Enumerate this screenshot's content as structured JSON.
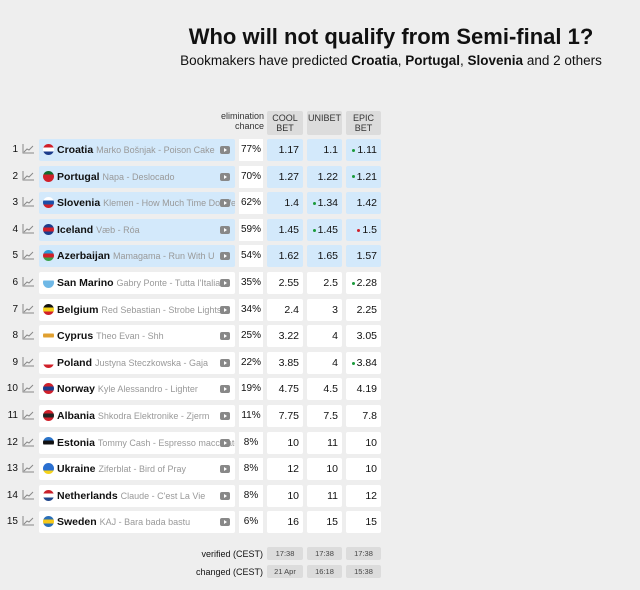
{
  "title": "Who will not qualify from Semi-final 1?",
  "subtitle": {
    "prefix": "Bookmakers have predicted ",
    "c1": "Croatia",
    "sep1": ", ",
    "c2": "Portugal",
    "sep2": ", ",
    "c3": "Slovenia",
    "suffix": " and 2 others"
  },
  "headers": {
    "chance": "elimination chance",
    "coolbet": "COOL BET",
    "unibet": "UNIBET",
    "epicbet": "EPIC BET"
  },
  "colors": {
    "highlight": "#d3e9fb",
    "green_dot": "#1a9a3a",
    "red_dot": "#d0202a"
  },
  "rows": [
    {
      "n": "1",
      "country": "Croatia",
      "song": "Marko Bošnjak - Poison Cake",
      "chance": "77%",
      "odds": [
        "1.17",
        "1.1",
        "1.11"
      ],
      "dots": [
        "",
        "",
        "green"
      ],
      "flag": [
        "#d0202a",
        "#fff",
        "#1b3c8c"
      ],
      "hl": true
    },
    {
      "n": "2",
      "country": "Portugal",
      "song": "Napa - Deslocado",
      "chance": "70%",
      "odds": [
        "1.27",
        "1.22",
        "1.21"
      ],
      "dots": [
        "",
        "",
        "green"
      ],
      "flag": [
        "#116b2d",
        "#d0202a",
        "#d0202a"
      ],
      "hl": true
    },
    {
      "n": "3",
      "country": "Slovenia",
      "song": "Klemen - How Much Time Do We ...",
      "chance": "62%",
      "odds": [
        "1.4",
        "1.34",
        "1.42"
      ],
      "dots": [
        "",
        "green",
        ""
      ],
      "flag": [
        "#fff",
        "#1b4fa8",
        "#d0202a"
      ],
      "hl": true
    },
    {
      "n": "4",
      "country": "Iceland",
      "song": "Væb - Róa",
      "chance": "59%",
      "odds": [
        "1.45",
        "1.45",
        "1.5"
      ],
      "dots": [
        "",
        "green",
        "red"
      ],
      "flag": [
        "#1b3c8c",
        "#d0202a",
        "#1b3c8c"
      ],
      "hl": true
    },
    {
      "n": "5",
      "country": "Azerbaijan",
      "song": "Mamagama - Run With U",
      "chance": "54%",
      "odds": [
        "1.62",
        "1.65",
        "1.57"
      ],
      "dots": [
        "",
        "",
        ""
      ],
      "flag": [
        "#2a9ad6",
        "#d0202a",
        "#3aa048"
      ],
      "hl": true
    },
    {
      "n": "6",
      "country": "San Marino",
      "song": "Gabry Ponte - Tutta l'Italia",
      "chance": "35%",
      "odds": [
        "2.55",
        "2.5",
        "2.28"
      ],
      "dots": [
        "",
        "",
        "green"
      ],
      "flag": [
        "#fff",
        "#6fb8e6",
        "#6fb8e6"
      ],
      "hl": false
    },
    {
      "n": "7",
      "country": "Belgium",
      "song": "Red Sebastian - Strobe Lights",
      "chance": "34%",
      "odds": [
        "2.4",
        "3",
        "2.25"
      ],
      "dots": [
        "",
        "",
        ""
      ],
      "flag": [
        "#111",
        "#f2d21a",
        "#d0202a"
      ],
      "hl": false
    },
    {
      "n": "8",
      "country": "Cyprus",
      "song": "Theo Evan - Shh",
      "chance": "25%",
      "odds": [
        "3.22",
        "4",
        "3.05"
      ],
      "dots": [
        "",
        "",
        ""
      ],
      "flag": [
        "#fff",
        "#e0a030",
        "#fff"
      ],
      "hl": false
    },
    {
      "n": "9",
      "country": "Poland",
      "song": "Justyna Steczkowska - Gaja",
      "chance": "22%",
      "odds": [
        "3.85",
        "4",
        "3.84"
      ],
      "dots": [
        "",
        "",
        "green"
      ],
      "flag": [
        "#fff",
        "#fff",
        "#d0202a"
      ],
      "hl": false
    },
    {
      "n": "10",
      "country": "Norway",
      "song": "Kyle Alessandro - Lighter",
      "chance": "19%",
      "odds": [
        "4.75",
        "4.5",
        "4.19"
      ],
      "dots": [
        "",
        "",
        ""
      ],
      "flag": [
        "#d0202a",
        "#1b3c8c",
        "#d0202a"
      ],
      "hl": false
    },
    {
      "n": "11",
      "country": "Albania",
      "song": "Shkodra Elektronike - Zjerm",
      "chance": "11%",
      "odds": [
        "7.75",
        "7.5",
        "7.8"
      ],
      "dots": [
        "",
        "",
        ""
      ],
      "flag": [
        "#d0202a",
        "#222",
        "#d0202a"
      ],
      "hl": false
    },
    {
      "n": "12",
      "country": "Estonia",
      "song": "Tommy Cash - Espresso macchiato",
      "chance": "8%",
      "odds": [
        "10",
        "11",
        "10"
      ],
      "dots": [
        "",
        "",
        ""
      ],
      "flag": [
        "#2a73c8",
        "#111",
        "#fff"
      ],
      "hl": false
    },
    {
      "n": "13",
      "country": "Ukraine",
      "song": "Ziferblat - Bird of Pray",
      "chance": "8%",
      "odds": [
        "12",
        "10",
        "10"
      ],
      "dots": [
        "",
        "",
        ""
      ],
      "flag": [
        "#2a6fd0",
        "#2a6fd0",
        "#f5d21a"
      ],
      "hl": false
    },
    {
      "n": "14",
      "country": "Netherlands",
      "song": "Claude - C'est La Vie",
      "chance": "8%",
      "odds": [
        "10",
        "11",
        "12"
      ],
      "dots": [
        "",
        "",
        ""
      ],
      "flag": [
        "#c8202a",
        "#fff",
        "#21468b"
      ],
      "hl": false
    },
    {
      "n": "15",
      "country": "Sweden",
      "song": "KAJ - Bara bada bastu",
      "chance": "6%",
      "odds": [
        "16",
        "15",
        "15"
      ],
      "dots": [
        "",
        "",
        ""
      ],
      "flag": [
        "#2a6fb8",
        "#f5c81a",
        "#2a6fb8"
      ],
      "hl": false
    }
  ],
  "footer": {
    "verified_label": "verified (CEST)",
    "verified": [
      "17:38",
      "17:38",
      "17:38"
    ],
    "changed_label": "changed (CEST)",
    "changed": [
      "21 Apr",
      "16:18",
      "15:38"
    ]
  }
}
